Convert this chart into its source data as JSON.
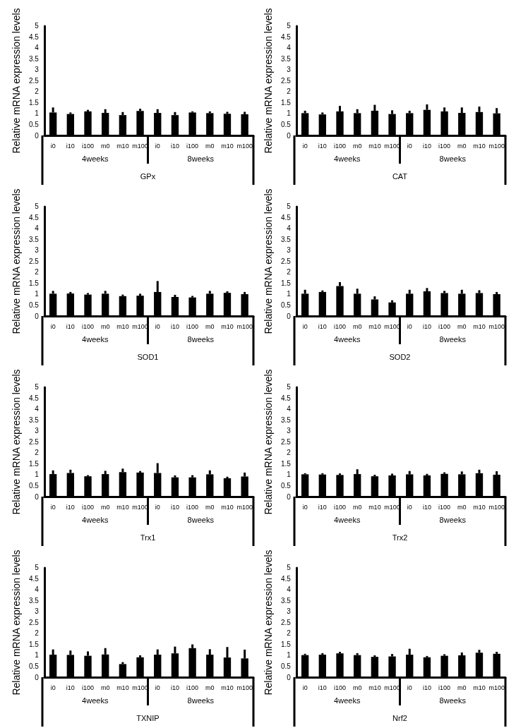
{
  "chart_data": [
    {
      "type": "bar",
      "xlabel": "GPx",
      "ylabel": "Relative mRNA expression levels",
      "categories": [
        "i0",
        "i10",
        "i100",
        "m0",
        "m10",
        "m100",
        "i0",
        "i10",
        "i100",
        "m0",
        "m10",
        "m100"
      ],
      "annotations": [
        "4weeks",
        "8weeks"
      ],
      "color": "#000000",
      "ylim": [
        0,
        5
      ],
      "yticks": [
        0,
        0.5,
        1,
        1.5,
        2,
        2.5,
        3,
        3.5,
        4,
        4.5,
        5
      ],
      "grid": false,
      "values": [
        1.05,
        0.98,
        1.1,
        1.03,
        0.93,
        1.12,
        1.03,
        0.93,
        1.05,
        1.02,
        0.99,
        0.97
      ],
      "errors": [
        [
          1.05,
          1.28
        ],
        [
          0.98,
          1.05
        ],
        [
          1.1,
          1.17
        ],
        [
          1.03,
          1.2
        ],
        [
          0.93,
          1.07
        ],
        [
          1.12,
          1.22
        ],
        [
          1.03,
          1.2
        ],
        [
          0.93,
          1.07
        ],
        [
          1.05,
          1.1
        ],
        [
          1.02,
          1.1
        ],
        [
          0.99,
          1.08
        ],
        [
          0.97,
          1.08
        ]
      ]
    },
    {
      "type": "bar",
      "xlabel": "CAT",
      "ylabel": "Relative mRNA expression levels",
      "categories": [
        "i0",
        "i10",
        "i100",
        "m0",
        "m10",
        "m100",
        "i0",
        "i10",
        "i100",
        "m0",
        "m10",
        "m100"
      ],
      "annotations": [
        "4weeks",
        "8weeks"
      ],
      "color": "#000000",
      "ylim": [
        0,
        5
      ],
      "yticks": [
        0,
        0.5,
        1,
        1.5,
        2,
        2.5,
        3,
        3.5,
        4,
        4.5,
        5
      ],
      "grid": false,
      "values": [
        1.02,
        0.96,
        1.1,
        1.02,
        1.13,
        0.98,
        1.02,
        1.17,
        1.1,
        1.03,
        1.07,
        1.01
      ],
      "errors": [
        [
          1.02,
          1.13
        ],
        [
          0.96,
          1.05
        ],
        [
          1.1,
          1.35
        ],
        [
          1.02,
          1.2
        ],
        [
          1.13,
          1.4
        ],
        [
          0.98,
          1.15
        ],
        [
          1.02,
          1.13
        ],
        [
          1.17,
          1.42
        ],
        [
          1.1,
          1.28
        ],
        [
          1.03,
          1.28
        ],
        [
          1.07,
          1.32
        ],
        [
          1.01,
          1.25
        ]
      ]
    },
    {
      "type": "bar",
      "xlabel": "SOD1",
      "ylabel": "Relative mRNA expression levels",
      "categories": [
        "i0",
        "i10",
        "i100",
        "m0",
        "m10",
        "m100",
        "i0",
        "i10",
        "i100",
        "m0",
        "m10",
        "m100"
      ],
      "annotations": [
        "4weeks",
        "8weeks"
      ],
      "color": "#000000",
      "ylim": [
        0,
        5
      ],
      "yticks": [
        0,
        0.5,
        1,
        1.5,
        2,
        2.5,
        3,
        3.5,
        4,
        4.5,
        5
      ],
      "grid": false,
      "values": [
        1.02,
        1.03,
        0.98,
        1.02,
        0.91,
        0.93,
        1.1,
        0.87,
        0.85,
        1.02,
        1.06,
        1.0
      ],
      "errors": [
        [
          1.02,
          1.15
        ],
        [
          1.03,
          1.1
        ],
        [
          0.98,
          1.05
        ],
        [
          1.02,
          1.15
        ],
        [
          0.91,
          0.98
        ],
        [
          0.93,
          1.02
        ],
        [
          1.1,
          1.6
        ],
        [
          0.87,
          0.97
        ],
        [
          0.85,
          0.92
        ],
        [
          1.02,
          1.15
        ],
        [
          1.06,
          1.13
        ],
        [
          1.0,
          1.1
        ]
      ]
    },
    {
      "type": "bar",
      "xlabel": "SOD2",
      "ylabel": "Relative mRNA expression levels",
      "categories": [
        "i0",
        "i10",
        "i100",
        "m0",
        "m10",
        "m100",
        "i0",
        "i10",
        "i100",
        "m0",
        "m10",
        "m100"
      ],
      "annotations": [
        "4weeks",
        "8weeks"
      ],
      "color": "#000000",
      "ylim": [
        0,
        5
      ],
      "yticks": [
        0,
        0.5,
        1,
        1.5,
        2,
        2.5,
        3,
        3.5,
        4,
        4.5,
        5
      ],
      "grid": false,
      "values": [
        1.02,
        1.1,
        1.37,
        1.02,
        0.76,
        0.62,
        1.02,
        1.13,
        1.05,
        1.02,
        1.05,
        1.0
      ],
      "errors": [
        [
          1.02,
          1.2
        ],
        [
          1.1,
          1.17
        ],
        [
          1.37,
          1.55
        ],
        [
          1.02,
          1.25
        ],
        [
          0.76,
          0.9
        ],
        [
          0.62,
          0.72
        ],
        [
          1.02,
          1.2
        ],
        [
          1.13,
          1.28
        ],
        [
          1.05,
          1.15
        ],
        [
          1.02,
          1.2
        ],
        [
          1.05,
          1.18
        ],
        [
          1.0,
          1.1
        ]
      ]
    },
    {
      "type": "bar",
      "xlabel": "Trx1",
      "ylabel": "Relative mRNA expression levels",
      "categories": [
        "i0",
        "i10",
        "i100",
        "m0",
        "m10",
        "m100",
        "i0",
        "i10",
        "i100",
        "m0",
        "m10",
        "m100"
      ],
      "annotations": [
        "4weeks",
        "8weeks"
      ],
      "color": "#000000",
      "ylim": [
        0,
        5
      ],
      "yticks": [
        0,
        0.5,
        1,
        1.5,
        2,
        2.5,
        3,
        3.5,
        4,
        4.5,
        5
      ],
      "grid": false,
      "values": [
        1.03,
        1.08,
        0.93,
        1.03,
        1.12,
        1.1,
        1.08,
        0.88,
        0.88,
        1.02,
        0.84,
        0.92
      ],
      "errors": [
        [
          1.03,
          1.2
        ],
        [
          1.08,
          1.23
        ],
        [
          0.93,
          0.98
        ],
        [
          1.03,
          1.18
        ],
        [
          1.12,
          1.28
        ],
        [
          1.1,
          1.17
        ],
        [
          1.08,
          1.53
        ],
        [
          0.88,
          0.97
        ],
        [
          0.88,
          0.98
        ],
        [
          1.02,
          1.2
        ],
        [
          0.84,
          0.91
        ],
        [
          0.92,
          1.1
        ]
      ]
    },
    {
      "type": "bar",
      "xlabel": "Trx2",
      "ylabel": "Relative mRNA expression levels",
      "categories": [
        "i0",
        "i10",
        "i100",
        "m0",
        "m10",
        "m100",
        "i0",
        "i10",
        "i100",
        "m0",
        "m10",
        "m100"
      ],
      "annotations": [
        "4weeks",
        "8weeks"
      ],
      "color": "#000000",
      "ylim": [
        0,
        5
      ],
      "yticks": [
        0,
        0.5,
        1,
        1.5,
        2,
        2.5,
        3,
        3.5,
        4,
        4.5,
        5
      ],
      "grid": false,
      "values": [
        1.02,
        1.01,
        0.99,
        1.03,
        0.93,
        0.97,
        1.02,
        0.97,
        1.04,
        1.02,
        1.07,
        1.0
      ],
      "errors": [
        [
          1.02,
          1.07
        ],
        [
          1.01,
          1.07
        ],
        [
          0.99,
          1.06
        ],
        [
          1.03,
          1.25
        ],
        [
          0.93,
          1.0
        ],
        [
          0.97,
          1.05
        ],
        [
          1.02,
          1.17
        ],
        [
          0.97,
          1.04
        ],
        [
          1.04,
          1.11
        ],
        [
          1.02,
          1.15
        ],
        [
          1.07,
          1.23
        ],
        [
          1.0,
          1.16
        ]
      ]
    },
    {
      "type": "bar",
      "xlabel": "TXNIP",
      "ylabel": "Relative mRNA expression levels",
      "categories": [
        "i0",
        "i10",
        "i100",
        "m0",
        "m10",
        "m100",
        "i0",
        "i10",
        "i100",
        "m0",
        "m10",
        "m100"
      ],
      "annotations": [
        "4weeks",
        "8weeks"
      ],
      "color": "#000000",
      "ylim": [
        0,
        5
      ],
      "yticks": [
        0,
        0.5,
        1,
        1.5,
        2,
        2.5,
        3,
        3.5,
        4,
        4.5,
        5
      ],
      "grid": false,
      "values": [
        1.03,
        1.02,
        0.98,
        1.04,
        0.6,
        0.91,
        1.03,
        1.09,
        1.33,
        1.03,
        0.9,
        0.86
      ],
      "errors": [
        [
          1.03,
          1.27
        ],
        [
          1.02,
          1.22
        ],
        [
          0.98,
          1.18
        ],
        [
          1.04,
          1.33
        ],
        [
          0.6,
          0.69
        ],
        [
          0.91,
          1.0
        ],
        [
          1.03,
          1.27
        ],
        [
          1.09,
          1.4
        ],
        [
          1.33,
          1.5
        ],
        [
          1.03,
          1.28
        ],
        [
          0.9,
          1.38
        ],
        [
          0.86,
          1.26
        ]
      ]
    },
    {
      "type": "bar",
      "xlabel": "Nrf2",
      "ylabel": "Relative mRNA expression levels",
      "categories": [
        "i0",
        "i10",
        "i100",
        "m0",
        "m10",
        "m100",
        "i0",
        "i10",
        "i100",
        "m0",
        "m10",
        "m100"
      ],
      "annotations": [
        "4weeks",
        "8weeks"
      ],
      "color": "#000000",
      "ylim": [
        0,
        5
      ],
      "yticks": [
        0,
        0.5,
        1,
        1.5,
        2,
        2.5,
        3,
        3.5,
        4,
        4.5,
        5
      ],
      "grid": false,
      "values": [
        1.01,
        1.03,
        1.09,
        1.01,
        0.93,
        0.95,
        1.03,
        0.91,
        0.98,
        1.0,
        1.12,
        1.07
      ],
      "errors": [
        [
          1.01,
          1.07
        ],
        [
          1.03,
          1.1
        ],
        [
          1.09,
          1.16
        ],
        [
          1.01,
          1.1
        ],
        [
          0.93,
          1.0
        ],
        [
          0.95,
          1.06
        ],
        [
          1.03,
          1.3
        ],
        [
          0.91,
          0.97
        ],
        [
          0.98,
          1.05
        ],
        [
          1.0,
          1.13
        ],
        [
          1.12,
          1.25
        ],
        [
          1.07,
          1.16
        ]
      ]
    }
  ]
}
